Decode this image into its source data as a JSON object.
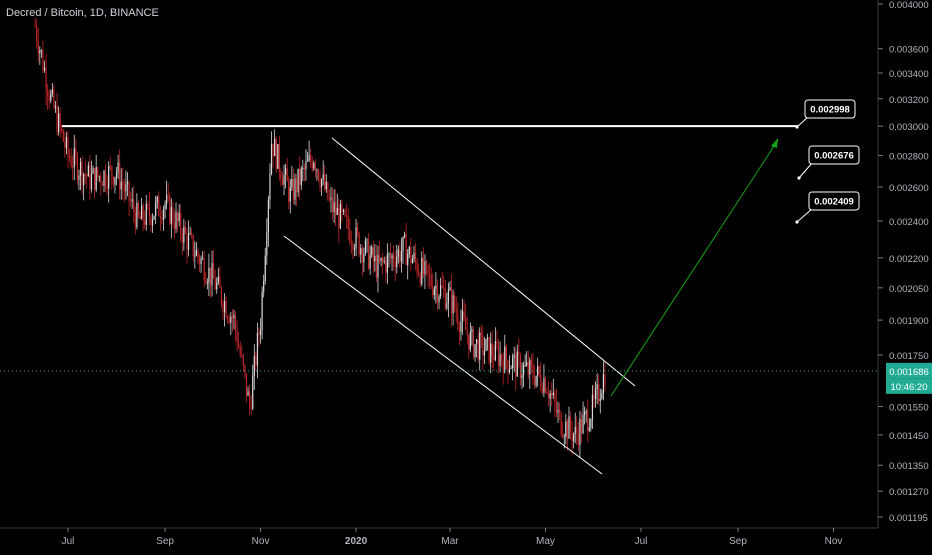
{
  "chart_data": {
    "type": "candlestick",
    "title": "Decred / Bitcoin, 1D, BINANCE",
    "y_axis": {
      "scale": "log",
      "ticks": [
        "0.004000",
        "0.003600",
        "0.003400",
        "0.003200",
        "0.003000",
        "0.002800",
        "0.002600",
        "0.002400",
        "0.002200",
        "0.002050",
        "0.001900",
        "0.001750",
        "0.001550",
        "0.001450",
        "0.001350",
        "0.001270",
        "0.001195"
      ]
    },
    "x_axis": {
      "ticks": [
        "Jul",
        "Sep",
        "Nov",
        "2020",
        "Mar",
        "May",
        "Jul",
        "Sep",
        "Nov"
      ]
    },
    "current_price": "0.001686",
    "countdown": "10:46:20",
    "price_labels": [
      "0.002998",
      "0.002676",
      "0.002409"
    ],
    "horizontal_level": 0.003,
    "colors": {
      "up": "#d9d9d9",
      "down": "#c0262a",
      "arrow": "#16a316",
      "current": "#22ab94",
      "grid": "none"
    },
    "series_samples": [
      [
        "2019-06-10",
        0.0038
      ],
      [
        "2019-06-20",
        0.0032
      ],
      [
        "2019-07-01",
        0.0028
      ],
      [
        "2019-07-15",
        0.00265
      ],
      [
        "2019-08-01",
        0.0027
      ],
      [
        "2019-08-15",
        0.0024
      ],
      [
        "2019-09-01",
        0.0025
      ],
      [
        "2019-09-15",
        0.0023
      ],
      [
        "2019-10-01",
        0.0021
      ],
      [
        "2019-10-15",
        0.0019
      ],
      [
        "2019-10-25",
        0.00155
      ],
      [
        "2019-11-01",
        0.0019
      ],
      [
        "2019-11-08",
        0.0029
      ],
      [
        "2019-11-20",
        0.00255
      ],
      [
        "2019-12-05",
        0.0028
      ],
      [
        "2019-12-15",
        0.0025
      ],
      [
        "2020-01-01",
        0.0023
      ],
      [
        "2020-01-15",
        0.00215
      ],
      [
        "2020-02-01",
        0.00225
      ],
      [
        "2020-02-15",
        0.0021
      ],
      [
        "2020-03-01",
        0.002
      ],
      [
        "2020-03-15",
        0.0018
      ],
      [
        "2020-04-01",
        0.00175
      ],
      [
        "2020-04-15",
        0.0017
      ],
      [
        "2020-05-01",
        0.00165
      ],
      [
        "2020-05-10",
        0.0015
      ],
      [
        "2020-05-20",
        0.00145
      ],
      [
        "2020-06-01",
        0.00155
      ],
      [
        "2020-06-08",
        0.00168
      ]
    ]
  }
}
